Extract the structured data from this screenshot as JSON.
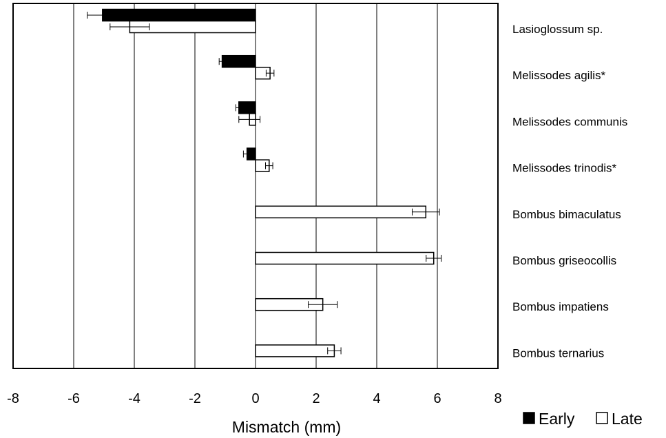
{
  "chart_data": {
    "type": "bar",
    "orientation": "horizontal",
    "xlabel": "Mismatch (mm)",
    "xlim": [
      -8,
      8
    ],
    "xticks": [
      -8,
      -6,
      -4,
      -2,
      0,
      2,
      4,
      6,
      8
    ],
    "grid": true,
    "legend_position": "bottom-right",
    "categories": [
      "Lasioglossum sp.",
      "Melissodes agilis*",
      "Melissodes communis",
      "Melissodes trinodis*",
      "Bombus bimaculatus",
      "Bombus griseocollis",
      "Bombus impatiens",
      "Bombus ternarius"
    ],
    "series": [
      {
        "name": "Early",
        "color": "#000000",
        "values": [
          -5.05,
          -1.1,
          -0.55,
          -0.28,
          null,
          null,
          null,
          null
        ],
        "errors": [
          0.5,
          0.1,
          0.1,
          0.12,
          null,
          null,
          null,
          null
        ]
      },
      {
        "name": "Late",
        "color": "#ffffff",
        "values": [
          -4.15,
          0.48,
          -0.2,
          0.45,
          5.62,
          5.88,
          2.22,
          2.6
        ],
        "errors": [
          0.65,
          0.13,
          0.35,
          0.12,
          0.45,
          0.25,
          0.48,
          0.22
        ]
      }
    ]
  }
}
